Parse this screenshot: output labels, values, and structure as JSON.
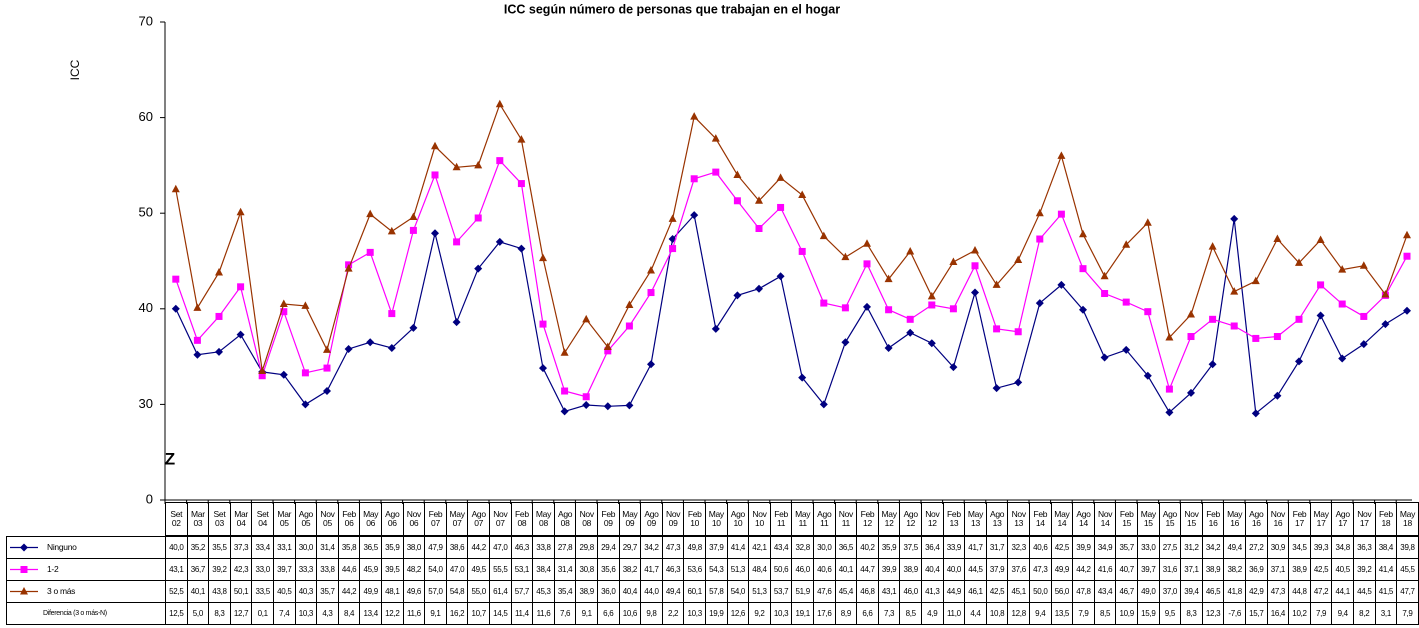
{
  "chart_data": {
    "type": "line",
    "title": "ICC según número de personas que trabajan en el hogar",
    "y_label": "ICC",
    "axis_break_mark": "Z",
    "y_break": true,
    "categories": [
      "Set 02",
      "Mar 03",
      "Set 03",
      "Mar 04",
      "Set 04",
      "Mar 05",
      "Ago 05",
      "Nov 05",
      "Feb 06",
      "May 06",
      "Ago 06",
      "Nov 06",
      "Feb 07",
      "May 07",
      "Ago 07",
      "Nov 07",
      "Feb 08",
      "May 08",
      "Ago 08",
      "Nov 08",
      "Feb 09",
      "May 09",
      "Ago 09",
      "Nov 09",
      "Feb 10",
      "May 10",
      "Ago 10",
      "Nov 10",
      "Feb 11",
      "May 11",
      "Ago 11",
      "Nov 11",
      "Feb 12",
      "May 12",
      "Ago 12",
      "Nov 12",
      "Feb 13",
      "May 13",
      "Ago 13",
      "Nov 13",
      "Feb 14",
      "May 14",
      "Ago 14",
      "Nov 14",
      "Feb 15",
      "May 15",
      "Ago 15",
      "Nov 15",
      "Feb 16",
      "May 16",
      "Ago 16",
      "Nov 16",
      "Feb 17",
      "May 17",
      "Ago 17",
      "Nov 17",
      "Feb 18",
      "May 18"
    ],
    "ylim": [
      0,
      70
    ],
    "yticks": [
      0,
      30,
      40,
      50,
      60,
      70
    ],
    "series": [
      {
        "name": "Ninguno",
        "color": "#000080",
        "marker": "diamond",
        "values": [
          40.0,
          35.2,
          35.5,
          37.3,
          33.4,
          33.1,
          30.0,
          31.4,
          35.8,
          36.5,
          35.9,
          38.0,
          47.9,
          38.6,
          44.2,
          47.0,
          46.3,
          33.8,
          27.8,
          29.8,
          29.4,
          29.7,
          34.2,
          47.3,
          49.8,
          37.9,
          41.4,
          42.1,
          43.4,
          32.8,
          30.0,
          36.5,
          40.2,
          35.9,
          37.5,
          36.4,
          33.9,
          41.7,
          31.7,
          32.3,
          40.6,
          42.5,
          39.9,
          34.9,
          35.7,
          33.0,
          27.5,
          31.2,
          34.2,
          49.4,
          27.2,
          30.9,
          34.5,
          39.3,
          34.8,
          36.3,
          38.4,
          39.8
        ],
        "value_labels": [
          "40,0",
          "35,2",
          "35,5",
          "37,3",
          "33,4",
          "33,1",
          "30,0",
          "31,4",
          "35,8",
          "36,5",
          "35,9",
          "38,0",
          "47,9",
          "38,6",
          "44,2",
          "47,0",
          "46,3",
          "33,8",
          "27,8",
          "29,8",
          "29,4",
          "29,7",
          "34,2",
          "47,3",
          "49,8",
          "37,9",
          "41,4",
          "42,1",
          "43,4",
          "32,8",
          "30,0",
          "36,5",
          "40,2",
          "35,9",
          "37,5",
          "36,4",
          "33,9",
          "41,7",
          "31,7",
          "32,3",
          "40,6",
          "42,5",
          "39,9",
          "34,9",
          "35,7",
          "33,0",
          "27,5",
          "31,2",
          "34,2",
          "49,4",
          "27,2",
          "30,9",
          "34,5",
          "39,3",
          "34,8",
          "36,3",
          "38,4",
          "39,8"
        ]
      },
      {
        "name": "1-2",
        "color": "#ff00ff",
        "marker": "square",
        "values": [
          43.1,
          36.7,
          39.2,
          42.3,
          33.0,
          39.7,
          33.3,
          33.8,
          44.6,
          45.9,
          39.5,
          48.2,
          54.0,
          47.0,
          49.5,
          55.5,
          53.1,
          38.4,
          31.4,
          30.8,
          35.6,
          38.2,
          41.7,
          46.3,
          53.6,
          54.3,
          51.3,
          48.4,
          50.6,
          46.0,
          40.6,
          40.1,
          44.7,
          39.9,
          38.9,
          40.4,
          40.0,
          44.5,
          37.9,
          37.6,
          47.3,
          49.9,
          44.2,
          41.6,
          40.7,
          39.7,
          31.6,
          37.1,
          38.9,
          38.2,
          36.9,
          37.1,
          38.9,
          42.5,
          40.5,
          39.2,
          41.4,
          45.5
        ],
        "value_labels": [
          "43,1",
          "36,7",
          "39,2",
          "42,3",
          "33,0",
          "39,7",
          "33,3",
          "33,8",
          "44,6",
          "45,9",
          "39,5",
          "48,2",
          "54,0",
          "47,0",
          "49,5",
          "55,5",
          "53,1",
          "38,4",
          "31,4",
          "30,8",
          "35,6",
          "38,2",
          "41,7",
          "46,3",
          "53,6",
          "54,3",
          "51,3",
          "48,4",
          "50,6",
          "46,0",
          "40,6",
          "40,1",
          "44,7",
          "39,9",
          "38,9",
          "40,4",
          "40,0",
          "44,5",
          "37,9",
          "37,6",
          "47,3",
          "49,9",
          "44,2",
          "41,6",
          "40,7",
          "39,7",
          "31,6",
          "37,1",
          "38,9",
          "38,2",
          "36,9",
          "37,1",
          "38,9",
          "42,5",
          "40,5",
          "39,2",
          "41,4",
          "45,5"
        ]
      },
      {
        "name": "3 o más",
        "color": "#993300",
        "marker": "triangle",
        "values": [
          52.5,
          40.1,
          43.8,
          50.1,
          33.5,
          40.5,
          40.3,
          35.7,
          44.2,
          49.9,
          48.1,
          49.6,
          57.0,
          54.8,
          55.0,
          61.4,
          57.7,
          45.3,
          35.4,
          38.9,
          36.0,
          40.4,
          44.0,
          49.4,
          60.1,
          57.8,
          54.0,
          51.3,
          53.7,
          51.9,
          47.6,
          45.4,
          46.8,
          43.1,
          46.0,
          41.3,
          44.9,
          46.1,
          42.5,
          45.1,
          50.0,
          56.0,
          47.8,
          43.4,
          46.7,
          49.0,
          37.0,
          39.4,
          46.5,
          41.8,
          42.9,
          47.3,
          44.8,
          47.2,
          44.1,
          44.5,
          41.5,
          47.7
        ],
        "value_labels": [
          "52,5",
          "40,1",
          "43,8",
          "50,1",
          "33,5",
          "40,5",
          "40,3",
          "35,7",
          "44,2",
          "49,9",
          "48,1",
          "49,6",
          "57,0",
          "54,8",
          "55,0",
          "61,4",
          "57,7",
          "45,3",
          "35,4",
          "38,9",
          "36,0",
          "40,4",
          "44,0",
          "49,4",
          "60,1",
          "57,8",
          "54,0",
          "51,3",
          "53,7",
          "51,9",
          "47,6",
          "45,4",
          "46,8",
          "43,1",
          "46,0",
          "41,3",
          "44,9",
          "46,1",
          "42,5",
          "45,1",
          "50,0",
          "56,0",
          "47,8",
          "43,4",
          "46,7",
          "49,0",
          "37,0",
          "39,4",
          "46,5",
          "41,8",
          "42,9",
          "47,3",
          "44,8",
          "47,2",
          "44,1",
          "44,5",
          "41,5",
          "47,7"
        ]
      },
      {
        "name": "Diferencia (3 o más-N)",
        "values": [
          12.5,
          5.0,
          8.3,
          12.7,
          0.1,
          7.4,
          10.3,
          4.3,
          8.4,
          13.4,
          12.2,
          11.6,
          9.1,
          16.2,
          10.7,
          14.5,
          11.4,
          11.6,
          7.6,
          9.1,
          6.6,
          10.6,
          9.8,
          2.2,
          10.3,
          19.9,
          12.6,
          9.2,
          10.3,
          19.1,
          17.6,
          8.9,
          6.6,
          7.3,
          8.5,
          4.9,
          11.0,
          4.4,
          10.8,
          12.8,
          9.4,
          13.5,
          7.9,
          8.5,
          10.9,
          15.9,
          9.5,
          8.3,
          12.3,
          -7.6,
          15.7,
          16.4,
          10.2,
          7.9,
          9.4,
          8.2,
          3.1,
          7.9
        ],
        "value_labels": [
          "12,5",
          "5,0",
          "8,3",
          "12,7",
          "0,1",
          "7,4",
          "10,3",
          "4,3",
          "8,4",
          "13,4",
          "12,2",
          "11,6",
          "9,1",
          "16,2",
          "10,7",
          "14,5",
          "11,4",
          "11,6",
          "7,6",
          "9,1",
          "6,6",
          "10,6",
          "9,8",
          "2,2",
          "10,3",
          "19,9",
          "12,6",
          "9,2",
          "10,3",
          "19,1",
          "17,6",
          "8,9",
          "6,6",
          "7,3",
          "8,5",
          "4,9",
          "11,0",
          "4,4",
          "10,8",
          "12,8",
          "9,4",
          "13,5",
          "7,9",
          "8,5",
          "10,9",
          "15,9",
          "9,5",
          "8,3",
          "12,3",
          "-7,6",
          "15,7",
          "16,4",
          "10,2",
          "7,9",
          "9,4",
          "8,2",
          "3,1",
          "7,9"
        ]
      }
    ]
  }
}
